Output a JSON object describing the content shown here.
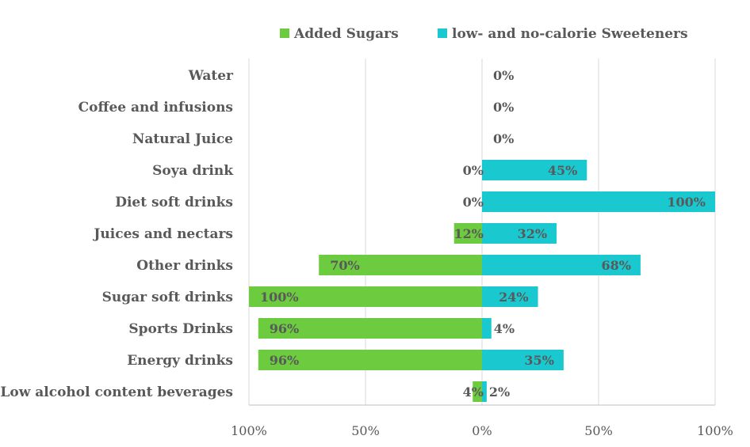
{
  "chart_data": {
    "type": "bar",
    "orientation": "horizontal-diverging",
    "title": "",
    "categories": [
      "Water",
      "Coffee and infusions",
      "Natural Juice",
      "Soya drink",
      "Diet soft drinks",
      "Juices and nectars",
      "Other drinks",
      "Sugar soft drinks",
      "Sports Drinks",
      "Energy drinks",
      "Low alcohol content beverages"
    ],
    "series": [
      {
        "name": "Added Sugars",
        "color": "#6ccb3f",
        "direction": "left",
        "values": [
          null,
          null,
          null,
          0,
          0,
          12,
          70,
          100,
          96,
          96,
          4
        ],
        "labels": [
          "",
          "",
          "",
          "0%",
          "0%",
          "12%",
          "70%",
          "100%",
          "96%",
          "96%",
          "4%"
        ]
      },
      {
        "name": "low- and no-calorie Sweeteners",
        "color": "#1ac8cf",
        "direction": "right",
        "values": [
          0,
          0,
          0,
          45,
          100,
          32,
          68,
          24,
          4,
          35,
          2
        ],
        "labels": [
          "0%",
          "0%",
          "0%",
          "45%",
          "100%",
          "32%",
          "68%",
          "24%",
          "4%",
          "35%",
          "2%"
        ]
      }
    ],
    "xlim": [
      -100,
      100
    ],
    "x_ticks": [
      -100,
      -50,
      0,
      50,
      100
    ],
    "x_tick_labels": [
      "100%",
      "50%",
      "0%",
      "50%",
      "100%"
    ],
    "xlabel": "",
    "ylabel": "",
    "grid": true,
    "legend_position": "top"
  }
}
